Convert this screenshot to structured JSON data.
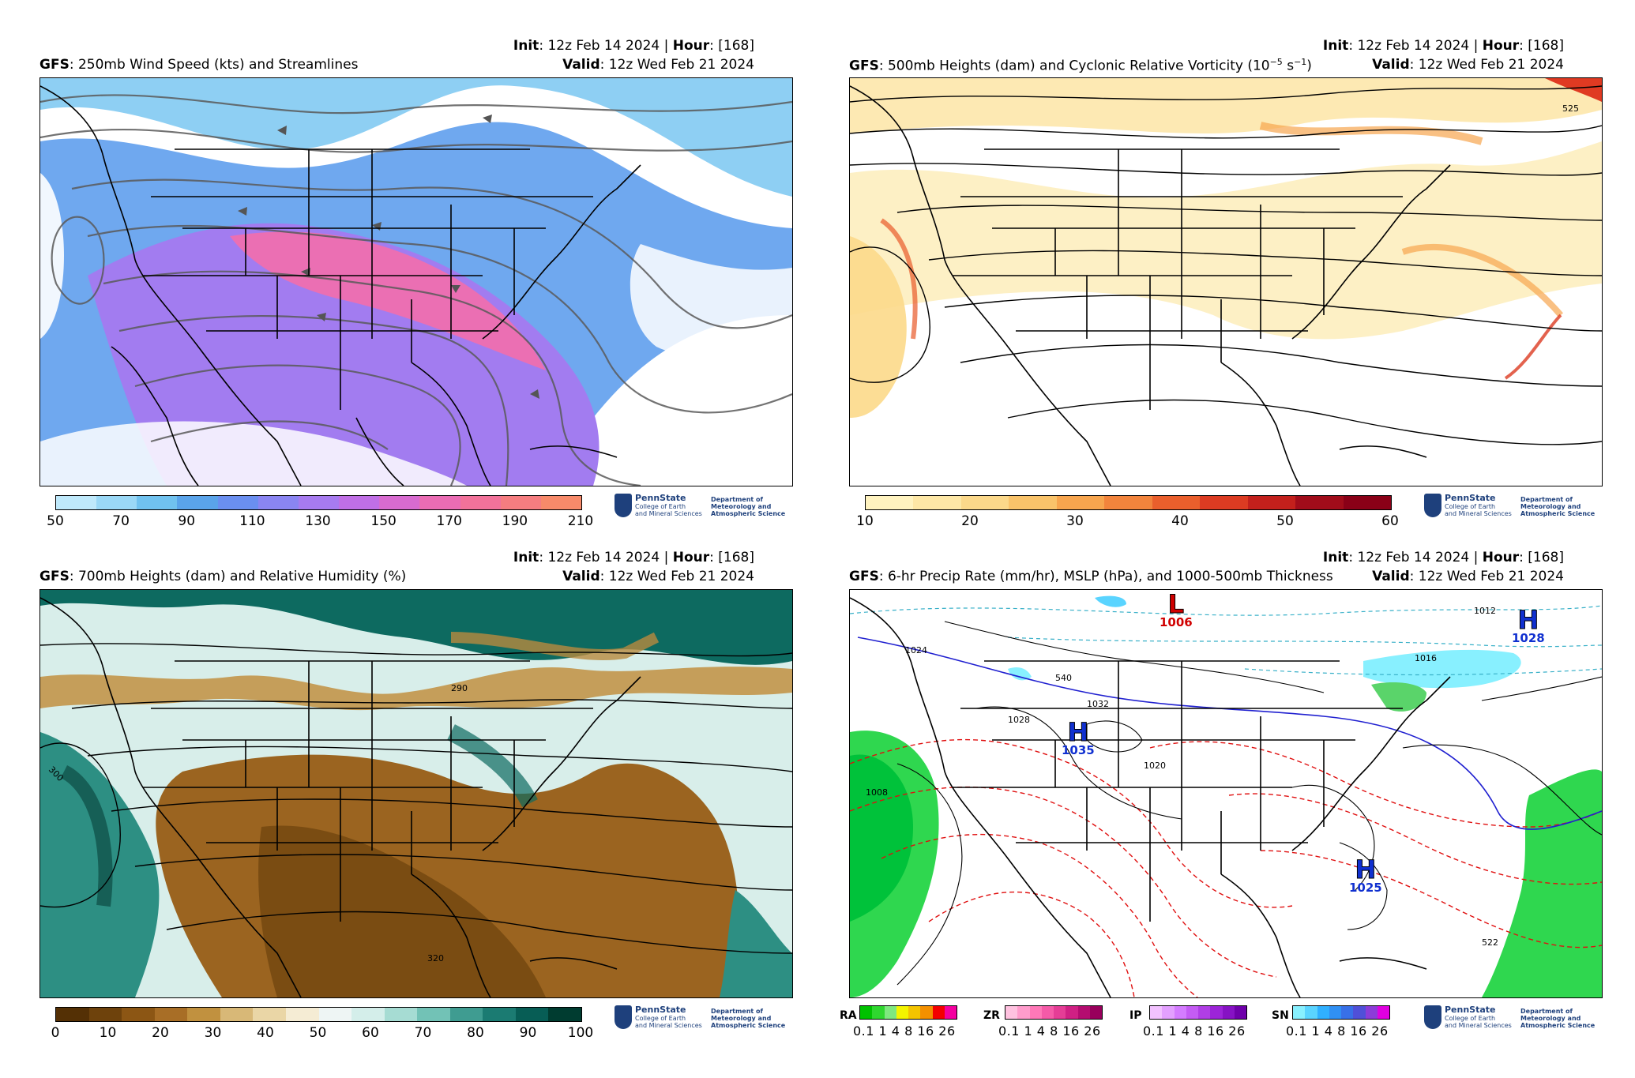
{
  "panels": [
    {
      "id": "p1",
      "model": "GFS",
      "title_rest": ": 250mb Wind Speed (kts) and Streamlines",
      "init_label": "Init",
      "init_value": ": 12z Feb 14 2024 | ",
      "hour_label": "Hour",
      "hour_value": ": [168]",
      "valid_label": "Valid",
      "valid_value": ": 12z Wed Feb 21 2024",
      "colorbar_ticks": [
        "50",
        "70",
        "90",
        "110",
        "130",
        "150",
        "170",
        "190",
        "210"
      ],
      "colors": [
        "#bfe9fb",
        "#9ad8f6",
        "#70c2ef",
        "#5aa4ea",
        "#6a8ff0",
        "#8a85f2",
        "#a77bf0",
        "#c06fe6",
        "#d86bd0",
        "#ea6cb4",
        "#f2729a",
        "#f57d80",
        "#f78a6a"
      ]
    },
    {
      "id": "p2",
      "model": "GFS",
      "title_rest": ": 500mb Heights (dam) and Cyclonic Relative Vorticity (10",
      "title_sup1": "−5",
      "title_mid": " s",
      "title_sup2": "−1",
      "title_end": ")",
      "init_label": "Init",
      "init_value": ": 12z Feb 14 2024 | ",
      "hour_label": "Hour",
      "hour_value": ": [168]",
      "valid_label": "Valid",
      "valid_value": ": 12z Wed Feb 21 2024",
      "colorbar_ticks": [
        "10",
        "20",
        "30",
        "40",
        "50",
        "60"
      ],
      "colors": [
        "#fff3c0",
        "#fde7a6",
        "#fbd88a",
        "#f9c36a",
        "#f7a54e",
        "#f2843c",
        "#ea5f2c",
        "#dc3b22",
        "#c3201c",
        "#a10c1a",
        "#8a0017"
      ],
      "contour_label": "525"
    },
    {
      "id": "p3",
      "model": "GFS",
      "title_rest": ": 700mb Heights (dam) and Relative Humidity (%)",
      "init_label": "Init",
      "init_value": ": 12z Feb 14 2024 | ",
      "hour_label": "Hour",
      "hour_value": ": [168]",
      "valid_label": "Valid",
      "valid_value": ": 12z Wed Feb 21 2024",
      "colorbar_ticks": [
        "0",
        "10",
        "20",
        "30",
        "40",
        "50",
        "60",
        "70",
        "80",
        "90",
        "100"
      ],
      "colors": [
        "#543005",
        "#6e420c",
        "#8c5614",
        "#a86e26",
        "#c1913f",
        "#d8b877",
        "#ead6a6",
        "#f5ecd4",
        "#eef5f4",
        "#d4eeea",
        "#a6dcd3",
        "#72c2b6",
        "#3f9c91",
        "#1b7b72",
        "#075d55",
        "#003c30"
      ],
      "contour_labels": [
        "300",
        "290",
        "320"
      ]
    },
    {
      "id": "p4",
      "model": "GFS",
      "title_rest": ": 6-hr Precip Rate (mm/hr), MSLP (hPa), and 1000-500mb Thickness",
      "init_label": "Init",
      "init_value": ": 12z Feb 14 2024 | ",
      "hour_label": "Hour",
      "hour_value": ": [168]",
      "valid_label": "Valid",
      "valid_value": ": 12z Wed Feb 21 2024",
      "centers": [
        {
          "type": "L",
          "value": "1006",
          "color": "#d00000"
        },
        {
          "type": "H",
          "value": "1028",
          "color": "#1030d0"
        },
        {
          "type": "H",
          "value": "1035",
          "color": "#1030d0"
        },
        {
          "type": "H",
          "value": "1025",
          "color": "#1030d0"
        }
      ],
      "isobar_labels": [
        "1024",
        "1016",
        "1012",
        "1020",
        "1028",
        "1008",
        "1032",
        "540",
        "522"
      ],
      "precip_types": [
        {
          "label": "RA",
          "ticks": "0.1 1  4  8 16 26",
          "colors": [
            "#00c200",
            "#2fd72f",
            "#7fe87f",
            "#f4f400",
            "#f4c400",
            "#f49000",
            "#f40000",
            "#f400a0"
          ]
        },
        {
          "label": "ZR",
          "ticks": "0.1 1  4  8 16 26",
          "colors": [
            "#ffc2e0",
            "#ff9ccc",
            "#ff78b8",
            "#f55aa8",
            "#e53d96",
            "#d02084",
            "#b40c70",
            "#98005c"
          ]
        },
        {
          "label": "IP",
          "ticks": "0.1 1  4  8 16 26",
          "colors": [
            "#f2c2ff",
            "#e3a0ff",
            "#d47cff",
            "#c45cf4",
            "#b03ee6",
            "#9c24d8",
            "#8612c4",
            "#6e00aa"
          ]
        },
        {
          "label": "SN",
          "ticks": "0.1 1  4  8 16 26",
          "colors": [
            "#88f0ff",
            "#5ad4ff",
            "#30b0ff",
            "#3090f4",
            "#3870e8",
            "#5050d8",
            "#8c3cd8",
            "#e000e0"
          ]
        }
      ]
    }
  ],
  "logo": {
    "name": "PennState",
    "college_line1": "College of Earth",
    "college_line2": "and Mineral Sciences",
    "dept_line1": "Department of",
    "dept_line2": "Meteorology and",
    "dept_line3": "Atmospheric Science"
  }
}
